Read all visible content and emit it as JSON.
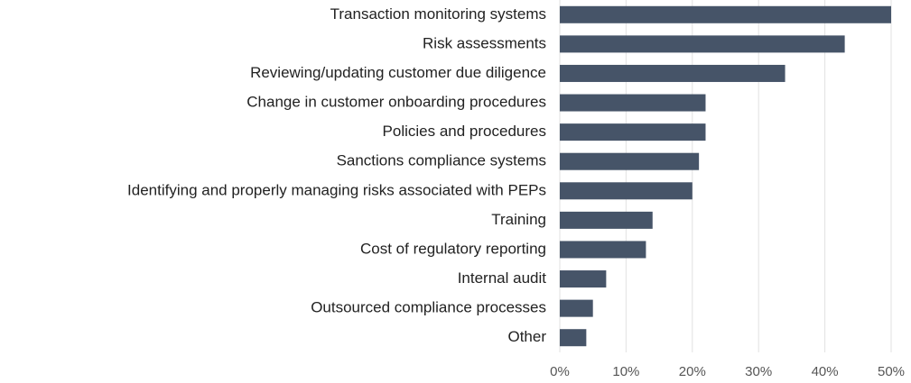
{
  "chart_data": {
    "type": "barh",
    "categories": [
      "Transaction monitoring systems",
      "Risk assessments",
      "Reviewing/updating customer due diligence",
      "Change in customer onboarding procedures",
      "Policies and procedures",
      "Sanctions compliance systems",
      "Identifying and properly managing risks associated with PEPs",
      "Training",
      "Cost of regulatory reporting",
      "Internal audit",
      "Outsourced compliance processes",
      "Other"
    ],
    "values": [
      50,
      43,
      34,
      22,
      22,
      21,
      20,
      14,
      13,
      7,
      5,
      4
    ],
    "color": "#465468",
    "xlim": [
      0,
      50
    ],
    "xticks": [
      {
        "value": 0,
        "label": "0%"
      },
      {
        "value": 10,
        "label": "10%"
      },
      {
        "value": 20,
        "label": "20%"
      },
      {
        "value": 30,
        "label": "30%"
      },
      {
        "value": 40,
        "label": "40%"
      },
      {
        "value": 50,
        "label": "50%"
      }
    ],
    "grid": true
  }
}
